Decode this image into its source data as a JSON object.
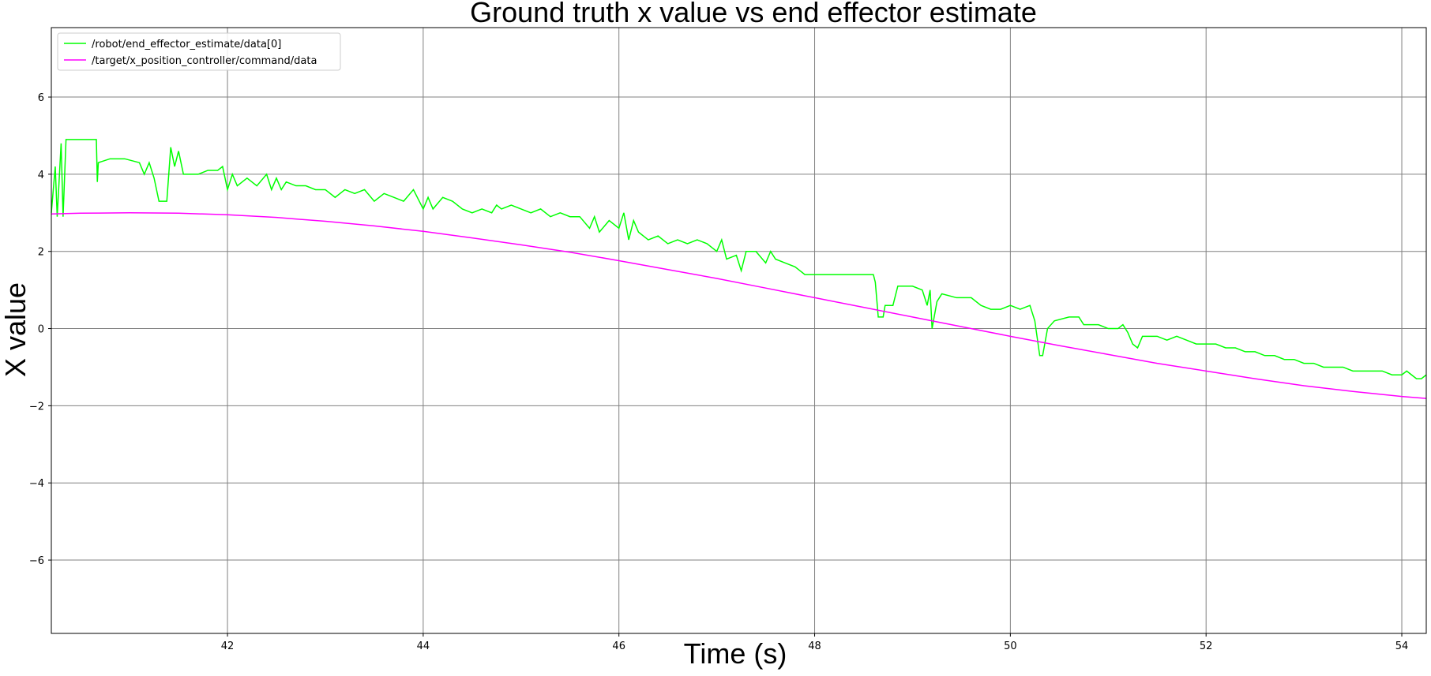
{
  "chart_data": {
    "type": "line",
    "title": "Ground truth x value vs end effector estimate",
    "xlabel": "Time (s)",
    "ylabel": "X value",
    "xlim": [
      40.2,
      54.25
    ],
    "ylim": [
      -7.9,
      7.8
    ],
    "xticks": [
      42,
      44,
      46,
      48,
      50,
      52,
      54
    ],
    "yticks": [
      -6,
      -4,
      -2,
      0,
      2,
      4,
      6
    ],
    "xtick_labels": [
      "42",
      "44",
      "46",
      "48",
      "50",
      "52",
      "54"
    ],
    "ytick_labels": [
      "−6",
      "−4",
      "−2",
      "0",
      "2",
      "4",
      "6"
    ],
    "grid": true,
    "legend_position": "top-left",
    "series": [
      {
        "name": "/robot/end_effector_estimate/data[0]",
        "color": "#00ff00",
        "points": [
          [
            40.2,
            3.0
          ],
          [
            40.24,
            4.2
          ],
          [
            40.26,
            2.9
          ],
          [
            40.3,
            4.8
          ],
          [
            40.32,
            2.9
          ],
          [
            40.35,
            4.9
          ],
          [
            40.66,
            4.9
          ],
          [
            40.67,
            3.8
          ],
          [
            40.68,
            4.3
          ],
          [
            40.8,
            4.4
          ],
          [
            40.95,
            4.4
          ],
          [
            41.1,
            4.3
          ],
          [
            41.15,
            4.0
          ],
          [
            41.2,
            4.3
          ],
          [
            41.25,
            3.9
          ],
          [
            41.3,
            3.3
          ],
          [
            41.38,
            3.3
          ],
          [
            41.42,
            4.7
          ],
          [
            41.46,
            4.2
          ],
          [
            41.5,
            4.6
          ],
          [
            41.55,
            4.0
          ],
          [
            41.6,
            4.0
          ],
          [
            41.7,
            4.0
          ],
          [
            41.8,
            4.1
          ],
          [
            41.9,
            4.1
          ],
          [
            41.95,
            4.2
          ],
          [
            42.0,
            3.6
          ],
          [
            42.05,
            4.0
          ],
          [
            42.1,
            3.7
          ],
          [
            42.2,
            3.9
          ],
          [
            42.3,
            3.7
          ],
          [
            42.4,
            4.0
          ],
          [
            42.45,
            3.6
          ],
          [
            42.5,
            3.9
          ],
          [
            42.55,
            3.6
          ],
          [
            42.6,
            3.8
          ],
          [
            42.7,
            3.7
          ],
          [
            42.8,
            3.7
          ],
          [
            42.9,
            3.6
          ],
          [
            43.0,
            3.6
          ],
          [
            43.1,
            3.4
          ],
          [
            43.2,
            3.6
          ],
          [
            43.3,
            3.5
          ],
          [
            43.4,
            3.6
          ],
          [
            43.5,
            3.3
          ],
          [
            43.6,
            3.5
          ],
          [
            43.7,
            3.4
          ],
          [
            43.8,
            3.3
          ],
          [
            43.9,
            3.6
          ],
          [
            44.0,
            3.1
          ],
          [
            44.05,
            3.4
          ],
          [
            44.1,
            3.1
          ],
          [
            44.2,
            3.4
          ],
          [
            44.3,
            3.3
          ],
          [
            44.4,
            3.1
          ],
          [
            44.5,
            3.0
          ],
          [
            44.6,
            3.1
          ],
          [
            44.7,
            3.0
          ],
          [
            44.75,
            3.2
          ],
          [
            44.8,
            3.1
          ],
          [
            44.9,
            3.2
          ],
          [
            45.0,
            3.1
          ],
          [
            45.1,
            3.0
          ],
          [
            45.2,
            3.1
          ],
          [
            45.3,
            2.9
          ],
          [
            45.4,
            3.0
          ],
          [
            45.5,
            2.9
          ],
          [
            45.6,
            2.9
          ],
          [
            45.7,
            2.6
          ],
          [
            45.75,
            2.9
          ],
          [
            45.8,
            2.5
          ],
          [
            45.9,
            2.8
          ],
          [
            46.0,
            2.6
          ],
          [
            46.05,
            3.0
          ],
          [
            46.1,
            2.3
          ],
          [
            46.15,
            2.8
          ],
          [
            46.2,
            2.5
          ],
          [
            46.3,
            2.3
          ],
          [
            46.4,
            2.4
          ],
          [
            46.5,
            2.2
          ],
          [
            46.6,
            2.3
          ],
          [
            46.7,
            2.2
          ],
          [
            46.8,
            2.3
          ],
          [
            46.9,
            2.2
          ],
          [
            47.0,
            2.0
          ],
          [
            47.05,
            2.3
          ],
          [
            47.1,
            1.8
          ],
          [
            47.2,
            1.9
          ],
          [
            47.25,
            1.5
          ],
          [
            47.3,
            2.0
          ],
          [
            47.4,
            2.0
          ],
          [
            47.5,
            1.7
          ],
          [
            47.55,
            2.0
          ],
          [
            47.6,
            1.8
          ],
          [
            47.7,
            1.7
          ],
          [
            47.8,
            1.6
          ],
          [
            47.85,
            1.5
          ],
          [
            47.9,
            1.4
          ],
          [
            48.1,
            1.4
          ],
          [
            48.3,
            1.4
          ],
          [
            48.5,
            1.4
          ],
          [
            48.6,
            1.4
          ],
          [
            48.62,
            1.2
          ],
          [
            48.65,
            0.3
          ],
          [
            48.7,
            0.3
          ],
          [
            48.72,
            0.6
          ],
          [
            48.8,
            0.6
          ],
          [
            48.85,
            1.1
          ],
          [
            49.0,
            1.1
          ],
          [
            49.1,
            1.0
          ],
          [
            49.15,
            0.6
          ],
          [
            49.18,
            1.0
          ],
          [
            49.2,
            0.0
          ],
          [
            49.25,
            0.7
          ],
          [
            49.3,
            0.9
          ],
          [
            49.45,
            0.8
          ],
          [
            49.6,
            0.8
          ],
          [
            49.7,
            0.6
          ],
          [
            49.8,
            0.5
          ],
          [
            49.9,
            0.5
          ],
          [
            50.0,
            0.6
          ],
          [
            50.1,
            0.5
          ],
          [
            50.2,
            0.6
          ],
          [
            50.25,
            0.2
          ],
          [
            50.3,
            -0.7
          ],
          [
            50.33,
            -0.7
          ],
          [
            50.38,
            0.0
          ],
          [
            50.45,
            0.2
          ],
          [
            50.6,
            0.3
          ],
          [
            50.7,
            0.3
          ],
          [
            50.75,
            0.1
          ],
          [
            50.9,
            0.1
          ],
          [
            51.0,
            0.0
          ],
          [
            51.1,
            0.0
          ],
          [
            51.15,
            0.1
          ],
          [
            51.2,
            -0.1
          ],
          [
            51.25,
            -0.4
          ],
          [
            51.3,
            -0.5
          ],
          [
            51.35,
            -0.2
          ],
          [
            51.5,
            -0.2
          ],
          [
            51.6,
            -0.3
          ],
          [
            51.7,
            -0.2
          ],
          [
            51.8,
            -0.3
          ],
          [
            51.9,
            -0.4
          ],
          [
            52.0,
            -0.4
          ],
          [
            52.1,
            -0.4
          ],
          [
            52.2,
            -0.5
          ],
          [
            52.3,
            -0.5
          ],
          [
            52.4,
            -0.6
          ],
          [
            52.5,
            -0.6
          ],
          [
            52.6,
            -0.7
          ],
          [
            52.7,
            -0.7
          ],
          [
            52.8,
            -0.8
          ],
          [
            52.9,
            -0.8
          ],
          [
            53.0,
            -0.9
          ],
          [
            53.1,
            -0.9
          ],
          [
            53.2,
            -1.0
          ],
          [
            53.3,
            -1.0
          ],
          [
            53.4,
            -1.0
          ],
          [
            53.5,
            -1.1
          ],
          [
            53.6,
            -1.1
          ],
          [
            53.7,
            -1.1
          ],
          [
            53.8,
            -1.1
          ],
          [
            53.9,
            -1.2
          ],
          [
            54.0,
            -1.2
          ],
          [
            54.05,
            -1.1
          ],
          [
            54.1,
            -1.2
          ],
          [
            54.15,
            -1.3
          ],
          [
            54.2,
            -1.3
          ],
          [
            54.25,
            -1.2
          ]
        ]
      },
      {
        "name": "/target/x_position_controller/command/data",
        "color": "#ff00ff",
        "points": [
          [
            40.2,
            2.97
          ],
          [
            40.5,
            2.99
          ],
          [
            41.0,
            3.0
          ],
          [
            41.5,
            2.99
          ],
          [
            42.0,
            2.95
          ],
          [
            42.5,
            2.88
          ],
          [
            43.0,
            2.78
          ],
          [
            43.5,
            2.66
          ],
          [
            44.0,
            2.52
          ],
          [
            44.5,
            2.35
          ],
          [
            45.0,
            2.17
          ],
          [
            45.5,
            1.98
          ],
          [
            46.0,
            1.76
          ],
          [
            46.5,
            1.53
          ],
          [
            47.0,
            1.3
          ],
          [
            47.5,
            1.05
          ],
          [
            48.0,
            0.8
          ],
          [
            48.5,
            0.55
          ],
          [
            49.0,
            0.3
          ],
          [
            49.5,
            0.05
          ],
          [
            50.0,
            -0.2
          ],
          [
            50.5,
            -0.44
          ],
          [
            51.0,
            -0.67
          ],
          [
            51.5,
            -0.9
          ],
          [
            52.0,
            -1.1
          ],
          [
            52.5,
            -1.3
          ],
          [
            53.0,
            -1.48
          ],
          [
            53.5,
            -1.63
          ],
          [
            54.0,
            -1.76
          ],
          [
            54.25,
            -1.81
          ]
        ]
      }
    ]
  }
}
